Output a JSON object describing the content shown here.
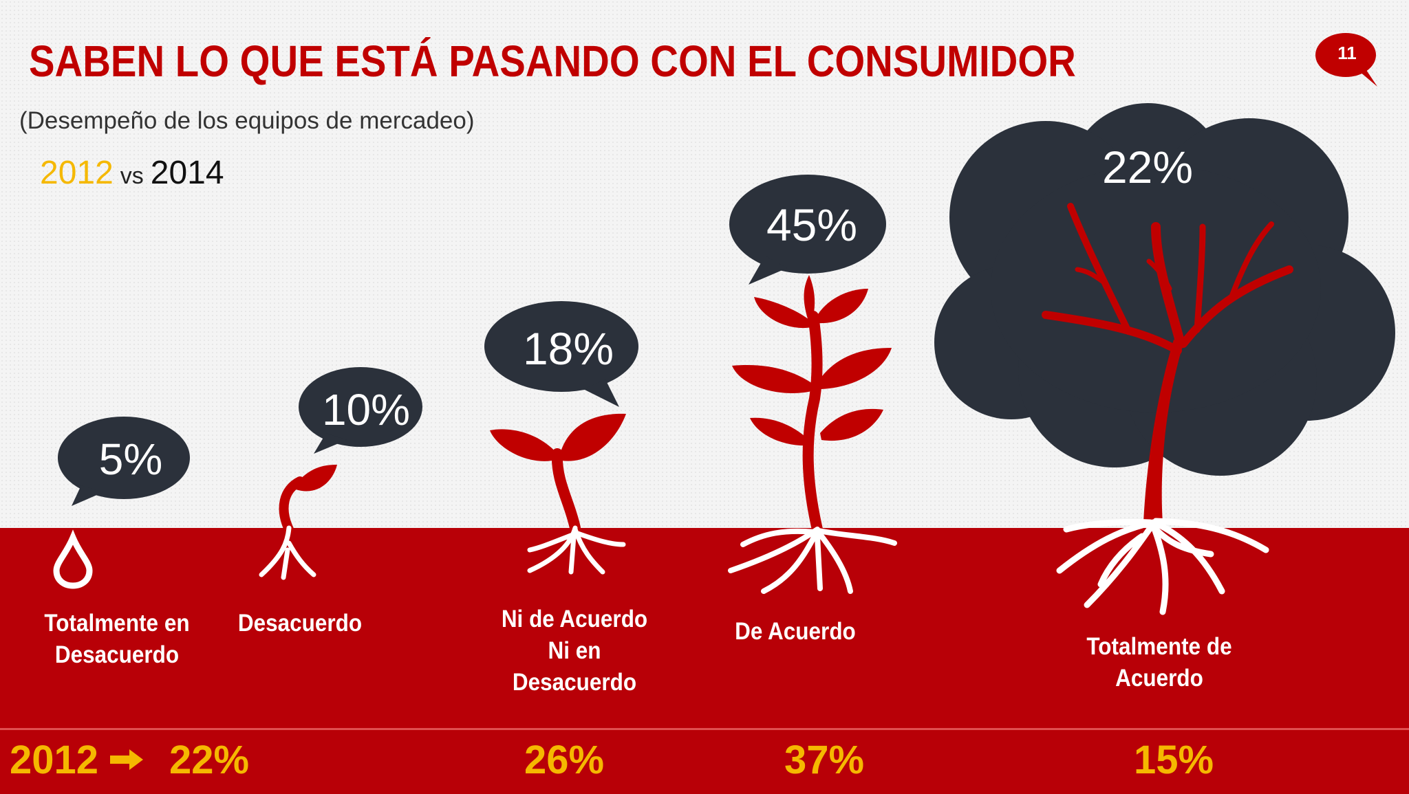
{
  "page": {
    "title": "SABEN LO QUE ESTÁ PASANDO CON EL CONSUMIDOR",
    "subtitle": "(Desempeño de los equipos de mercadeo)",
    "year_a": "2012",
    "vs": "vs",
    "year_b": "2014",
    "page_number": "11"
  },
  "colors": {
    "accent_red": "#c00000",
    "ground_red": "#b80007",
    "bubble_dark": "#2b313b",
    "highlight_yellow": "#f5b800"
  },
  "chart_data": {
    "type": "bar",
    "categories": [
      "Totalmente en Desacuerdo",
      "Desacuerdo",
      "Ni de Acuerdo Ni en Desacuerdo",
      "De Acuerdo",
      "Totalmente de Acuerdo"
    ],
    "series": [
      {
        "name": "2014",
        "values": [
          5,
          10,
          18,
          45,
          22
        ],
        "labels": [
          "5%",
          "10%",
          "18%",
          "45%",
          "22%"
        ]
      },
      {
        "name": "2012",
        "values": [
          22,
          null,
          26,
          37,
          15
        ],
        "labels": [
          "22%",
          "",
          "26%",
          "37%",
          "15%"
        ]
      }
    ],
    "label_lines": [
      [
        "Totalmente en",
        "Desacuerdo"
      ],
      [
        "Desacuerdo"
      ],
      [
        "Ni de Acuerdo",
        "Ni en",
        "Desacuerdo"
      ],
      [
        "De Acuerdo"
      ],
      [
        "Totalmente de",
        "Acuerdo"
      ]
    ],
    "icons": [
      "water-drop-icon",
      "sprout-icon",
      "seedling-icon",
      "young-plant-icon",
      "tree-icon"
    ],
    "bottom_row_label": "2012"
  }
}
